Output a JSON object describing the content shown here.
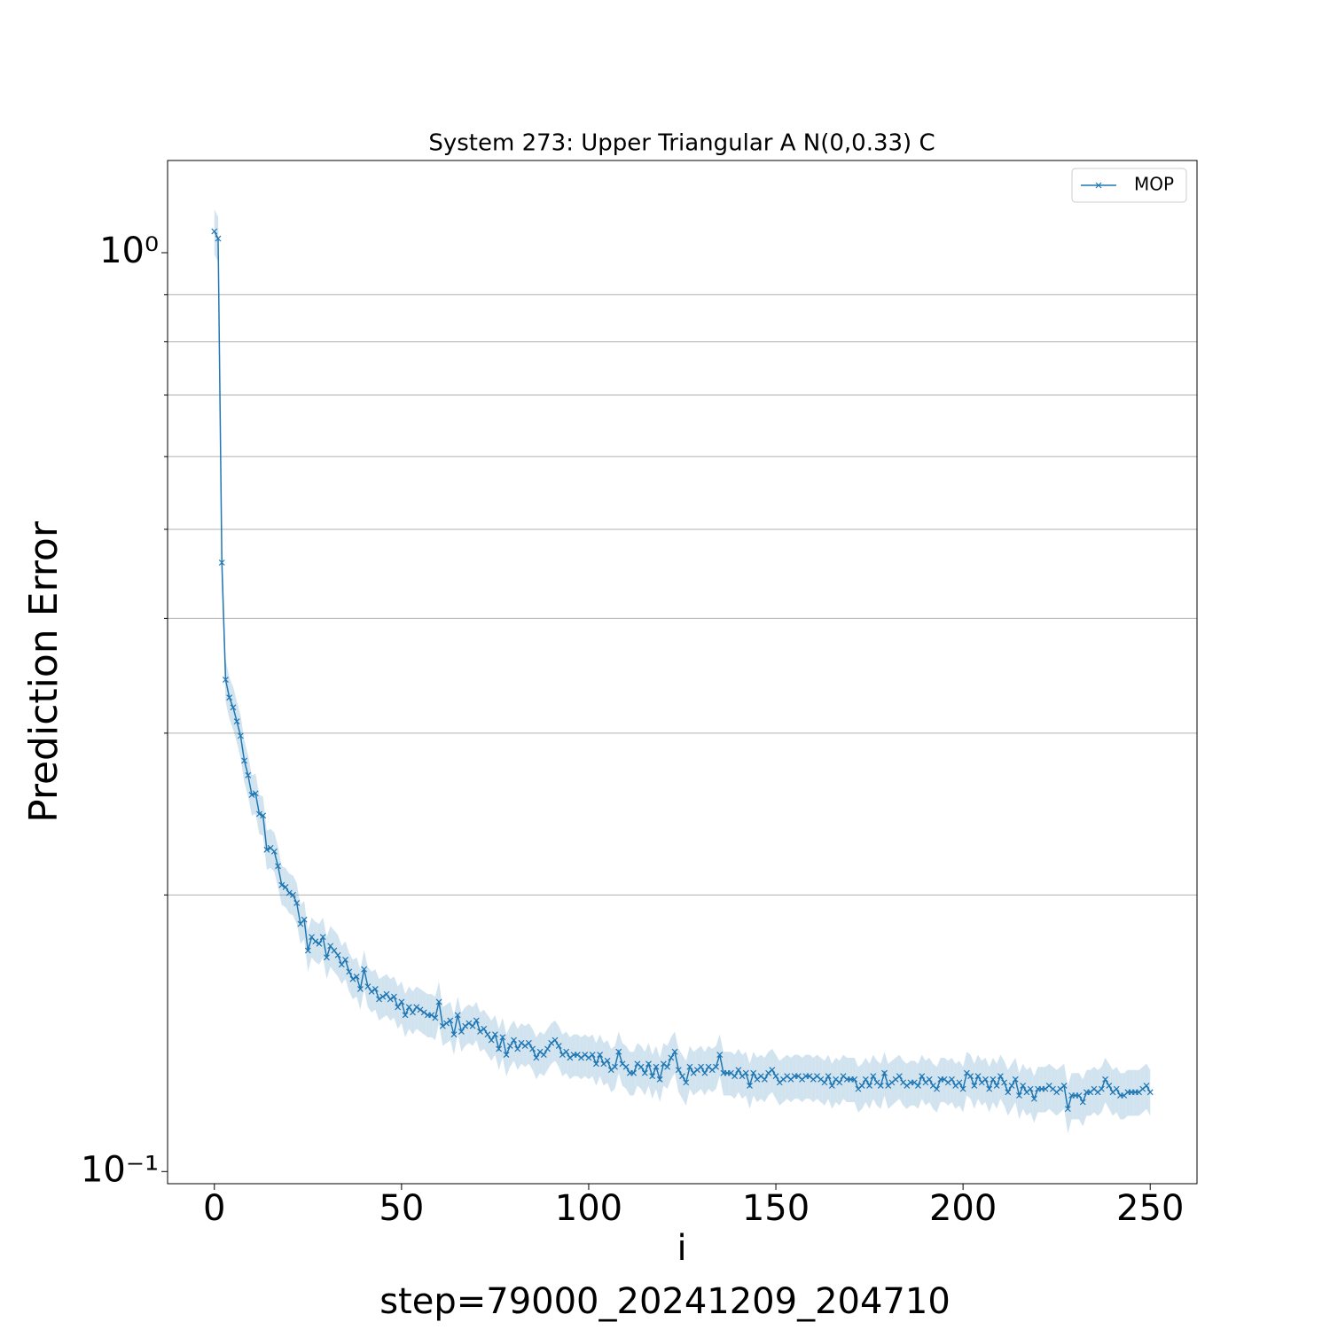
{
  "chart_data": {
    "type": "line",
    "title": "System 273: Upper Triangular A N(0,0.33) C",
    "x_label": "i",
    "y_label": "Prediction Error",
    "footer": "step=79000_20241209_204710",
    "yscale": "log",
    "legend": "upper right",
    "grid": "minor-y",
    "xlim": [
      -12.5,
      262.5
    ],
    "xticks": [
      0,
      50,
      100,
      150,
      200,
      250
    ],
    "ylim": [
      0.097,
      1.26
    ],
    "yticks": [
      {
        "value": 1,
        "label": "10⁰"
      },
      {
        "value": 0.1,
        "label": "10⁻¹"
      }
    ],
    "minor_yticks": [
      0.2,
      0.3,
      0.4,
      0.5,
      0.6,
      0.7,
      0.8,
      0.9
    ],
    "series": [
      {
        "name": "MOP",
        "color": "#1f77b4",
        "values": [
          1.055,
          1.036,
          0.46,
          0.343,
          0.328,
          0.32,
          0.309,
          0.298,
          0.28,
          0.27,
          0.257,
          0.258,
          0.245,
          0.244,
          0.224,
          0.225,
          0.223,
          0.215,
          0.205,
          0.204,
          0.201,
          0.2,
          0.196,
          0.186,
          0.188,
          0.174,
          0.18,
          0.178,
          0.177,
          0.18,
          0.171,
          0.176,
          0.174,
          0.172,
          0.168,
          0.17,
          0.165,
          0.162,
          0.163,
          0.158,
          0.166,
          0.159,
          0.157,
          0.158,
          0.154,
          0.155,
          0.156,
          0.154,
          0.155,
          0.151,
          0.153,
          0.148,
          0.151,
          0.149,
          0.151,
          0.15,
          0.149,
          0.148,
          0.148,
          0.147,
          0.153,
          0.144,
          0.145,
          0.146,
          0.141,
          0.148,
          0.142,
          0.144,
          0.145,
          0.144,
          0.146,
          0.142,
          0.143,
          0.141,
          0.139,
          0.141,
          0.136,
          0.14,
          0.134,
          0.137,
          0.139,
          0.136,
          0.138,
          0.137,
          0.138,
          0.136,
          0.133,
          0.135,
          0.134,
          0.136,
          0.138,
          0.139,
          0.137,
          0.134,
          0.135,
          0.133,
          0.134,
          0.134,
          0.133,
          0.134,
          0.133,
          0.134,
          0.131,
          0.134,
          0.131,
          0.132,
          0.129,
          0.13,
          0.135,
          0.131,
          0.13,
          0.128,
          0.128,
          0.131,
          0.13,
          0.128,
          0.131,
          0.127,
          0.13,
          0.126,
          0.131,
          0.13,
          0.133,
          0.135,
          0.129,
          0.127,
          0.125,
          0.13,
          0.128,
          0.129,
          0.13,
          0.128,
          0.13,
          0.129,
          0.13,
          0.134,
          0.128,
          0.128,
          0.128,
          0.127,
          0.129,
          0.127,
          0.128,
          0.124,
          0.128,
          0.126,
          0.127,
          0.126,
          0.128,
          0.129,
          0.127,
          0.125,
          0.126,
          0.127,
          0.126,
          0.127,
          0.127,
          0.126,
          0.127,
          0.127,
          0.126,
          0.127,
          0.126,
          0.125,
          0.127,
          0.124,
          0.126,
          0.125,
          0.127,
          0.126,
          0.126,
          0.126,
          0.123,
          0.124,
          0.126,
          0.124,
          0.127,
          0.125,
          0.124,
          0.128,
          0.124,
          0.125,
          0.126,
          0.127,
          0.125,
          0.124,
          0.125,
          0.125,
          0.124,
          0.127,
          0.125,
          0.126,
          0.124,
          0.123,
          0.126,
          0.126,
          0.125,
          0.126,
          0.124,
          0.125,
          0.123,
          0.128,
          0.127,
          0.124,
          0.127,
          0.125,
          0.126,
          0.123,
          0.126,
          0.124,
          0.127,
          0.125,
          0.122,
          0.124,
          0.126,
          0.121,
          0.124,
          0.122,
          0.123,
          0.12,
          0.123,
          0.123,
          0.123,
          0.124,
          0.123,
          0.122,
          0.123,
          0.124,
          0.117,
          0.121,
          0.121,
          0.121,
          0.119,
          0.122,
          0.122,
          0.123,
          0.122,
          0.123,
          0.126,
          0.124,
          0.122,
          0.123,
          0.121,
          0.121,
          0.122,
          0.122,
          0.122,
          0.122,
          0.123,
          0.124,
          0.122
        ],
        "errors": [
          0.06,
          0.058,
          0.024,
          0.018,
          0.017,
          0.017,
          0.016,
          0.016,
          0.015,
          0.014,
          0.013,
          0.013,
          0.012,
          0.012,
          0.011,
          0.011,
          0.011,
          0.011,
          0.01,
          0.01,
          0.01,
          0.01,
          0.01,
          0.009,
          0.009,
          0.009,
          0.009,
          0.009,
          0.009,
          0.009,
          0.009,
          0.009,
          0.009,
          0.009,
          0.008,
          0.008,
          0.008,
          0.008,
          0.008,
          0.008,
          0.008,
          0.008,
          0.008,
          0.008,
          0.008,
          0.008,
          0.008,
          0.008,
          0.008,
          0.008,
          0.008,
          0.008,
          0.008,
          0.008,
          0.008,
          0.008,
          0.008,
          0.008,
          0.008,
          0.008,
          0.008,
          0.007,
          0.007,
          0.007,
          0.007,
          0.007,
          0.007,
          0.007,
          0.007,
          0.007,
          0.007,
          0.007,
          0.007,
          0.007,
          0.007,
          0.007,
          0.007,
          0.007,
          0.007,
          0.007,
          0.007,
          0.007,
          0.007,
          0.007,
          0.007,
          0.007,
          0.007,
          0.007,
          0.007,
          0.007,
          0.007,
          0.007,
          0.007,
          0.007,
          0.007,
          0.007,
          0.007,
          0.007,
          0.007,
          0.007,
          0.007,
          0.007,
          0.007,
          0.007,
          0.007,
          0.007,
          0.007,
          0.007,
          0.007,
          0.007,
          0.007,
          0.007,
          0.007,
          0.007,
          0.007,
          0.007,
          0.007,
          0.007,
          0.007,
          0.007,
          0.007,
          0.007,
          0.007,
          0.007,
          0.007,
          0.007,
          0.007,
          0.007,
          0.007,
          0.007,
          0.007,
          0.007,
          0.007,
          0.007,
          0.007,
          0.007,
          0.007,
          0.007,
          0.007,
          0.007,
          0.007,
          0.007,
          0.007,
          0.007,
          0.007,
          0.007,
          0.007,
          0.007,
          0.007,
          0.007,
          0.007,
          0.007,
          0.007,
          0.007,
          0.007,
          0.007,
          0.007,
          0.007,
          0.007,
          0.007,
          0.007,
          0.007,
          0.007,
          0.007,
          0.007,
          0.007,
          0.007,
          0.007,
          0.007,
          0.007,
          0.007,
          0.007,
          0.007,
          0.007,
          0.007,
          0.007,
          0.007,
          0.007,
          0.007,
          0.007,
          0.007,
          0.007,
          0.007,
          0.007,
          0.007,
          0.007,
          0.007,
          0.007,
          0.007,
          0.007,
          0.007,
          0.007,
          0.007,
          0.007,
          0.007,
          0.007,
          0.007,
          0.007,
          0.007,
          0.007,
          0.007,
          0.007,
          0.007,
          0.007,
          0.007,
          0.007,
          0.007,
          0.007,
          0.007,
          0.007,
          0.007,
          0.007,
          0.007,
          0.007,
          0.007,
          0.007,
          0.007,
          0.007,
          0.007,
          0.007,
          0.007,
          0.007,
          0.007,
          0.007,
          0.007,
          0.007,
          0.007,
          0.007,
          0.007,
          0.007,
          0.007,
          0.007,
          0.007,
          0.007,
          0.007,
          0.007,
          0.007,
          0.007,
          0.007,
          0.007,
          0.007,
          0.007,
          0.007,
          0.007,
          0.007,
          0.007,
          0.007,
          0.007,
          0.007,
          0.007,
          0.007
        ]
      }
    ]
  }
}
